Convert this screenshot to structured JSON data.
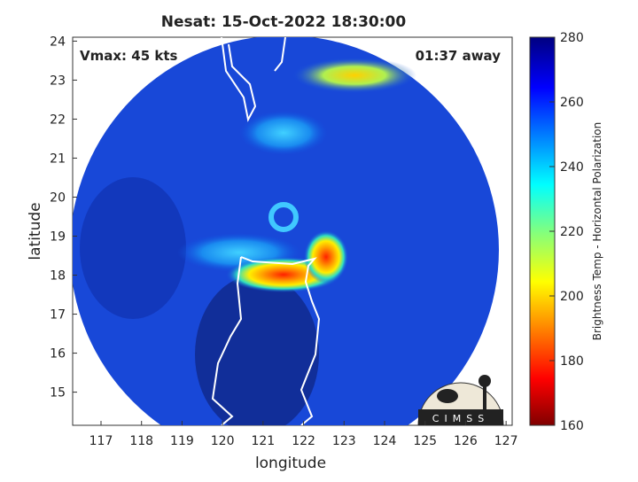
{
  "title": "Nesat: 15-Oct-2022 18:30:00",
  "annotations": {
    "vmax": "Vmax: 45 kts",
    "time_away": "01:37 away"
  },
  "x_axis": {
    "label": "longitude",
    "lim": [
      116.3,
      127.15
    ],
    "ticks": [
      117,
      118,
      119,
      120,
      121,
      122,
      123,
      124,
      125,
      126,
      127
    ]
  },
  "y_axis": {
    "label": "latitude",
    "lim": [
      14.15,
      24.1
    ],
    "ticks": [
      15,
      16,
      17,
      18,
      19,
      20,
      21,
      22,
      23,
      24
    ]
  },
  "colorbar": {
    "label": "Brightness Temp - Horizontal Polarization",
    "lim": [
      160,
      280
    ],
    "ticks": [
      160,
      180,
      200,
      220,
      240,
      260,
      280
    ]
  },
  "logo": "CIMSS"
}
